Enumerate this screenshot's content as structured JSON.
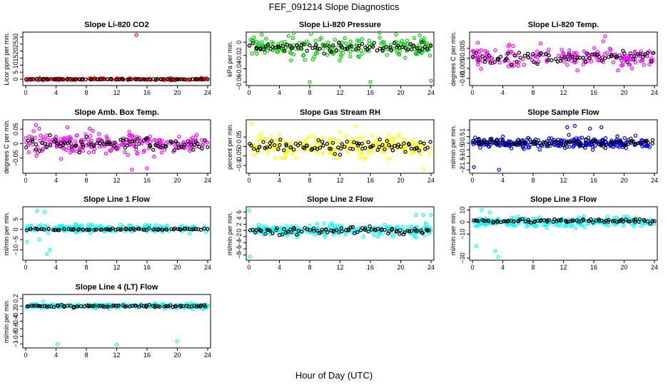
{
  "figure": {
    "title": "FEF_091214  Slope Diagnostics",
    "xlabel": "Hour of Day (UTC)"
  },
  "chart_data": [
    {
      "type": "scatter",
      "title": "Slope Li-820 CO2",
      "ylabel": "Licor ppm per min.",
      "color": "#ff0000",
      "overlay_color": "#000000",
      "xlim": [
        0,
        24
      ],
      "xticks": [
        0,
        4,
        8,
        12,
        16,
        20,
        24
      ],
      "ylim": [
        -3,
        32
      ],
      "yticks": [
        0,
        5,
        10,
        15,
        20,
        25,
        30
      ],
      "center": 0,
      "spread": 0.6,
      "overlay_center": 0,
      "overlay_spread": 0.3,
      "n": 160,
      "outliers": [
        [
          14.6,
          31.5
        ]
      ]
    },
    {
      "type": "scatter",
      "title": "Slope Li-820 Pressure",
      "ylabel": "kPa per min.",
      "color": "#00cc00",
      "overlay_color": "#000000",
      "xlim": [
        0,
        24
      ],
      "xticks": [
        0,
        4,
        8,
        12,
        16,
        20,
        24
      ],
      "ylim": [
        -0.062,
        0.012
      ],
      "yticks": [
        -0.06,
        -0.04,
        -0.02,
        0.0
      ],
      "center": -0.007,
      "spread": 0.014,
      "overlay_center": -0.008,
      "overlay_spread": 0.006,
      "n": 200,
      "outliers": [
        [
          8,
          -0.06
        ],
        [
          16,
          -0.06
        ],
        [
          24,
          -0.058
        ]
      ]
    },
    {
      "type": "scatter",
      "title": "Slope Li-820 Temp.",
      "ylabel": "degrees C per min.",
      "color": "#ff00ff",
      "overlay_color": "#000000",
      "xlim": [
        0,
        24
      ],
      "xticks": [
        0,
        4,
        8,
        12,
        16,
        20,
        24
      ],
      "ylim": [
        -0.0125,
        0.012
      ],
      "yticks": [
        -0.01,
        -0.005,
        0.0,
        0.005
      ],
      "center": 0.001,
      "spread": 0.005,
      "overlay_center": 0.0005,
      "overlay_spread": 0.003,
      "n": 180,
      "outliers": [
        [
          17.5,
          0.011
        ]
      ]
    },
    {
      "type": "scatter",
      "title": "Slope Amb. Box Temp.",
      "ylabel": "degrees C per min.",
      "color": "#ff00ff",
      "overlay_color": "#000000",
      "xlim": [
        0,
        24
      ],
      "xticks": [
        0,
        4,
        8,
        12,
        16,
        20,
        24
      ],
      "ylim": [
        -0.095,
        0.075
      ],
      "yticks": [
        -0.05,
        0.0,
        0.05
      ],
      "center": 0,
      "spread": 0.035,
      "overlay_center": 0,
      "overlay_spread": 0.02,
      "n": 220,
      "outliers": [
        [
          14,
          -0.09
        ],
        [
          16,
          -0.085
        ]
      ]
    },
    {
      "type": "scatter",
      "title": "Slope Gas Stream RH",
      "ylabel": "percent per min.",
      "color": "#ffff00",
      "overlay_color": "#000000",
      "xlim": [
        0,
        24
      ],
      "xticks": [
        0,
        4,
        8,
        12,
        16,
        20,
        24
      ],
      "ylim": [
        -0.13,
        0.13
      ],
      "yticks": [
        -0.1,
        -0.05,
        0.0,
        0.05
      ],
      "center": 0,
      "spread": 0.05,
      "overlay_center": 0,
      "overlay_spread": 0.03,
      "n": 220,
      "outliers": [
        [
          0.3,
          0.12
        ],
        [
          23,
          -0.12
        ]
      ]
    },
    {
      "type": "scatter",
      "title": "Slope Sample Flow",
      "ylabel": "ml/min per min.",
      "color": "#0000ff",
      "overlay_color": "#000000",
      "xlim": [
        0,
        24
      ],
      "xticks": [
        0,
        4,
        8,
        12,
        16,
        20,
        24
      ],
      "ylim": [
        -2.1,
        1.6
      ],
      "yticks": [
        -2.0,
        -1.5,
        -1.0,
        -0.5,
        0.0,
        0.5,
        1.0
      ],
      "center": 0,
      "spread": 0.35,
      "overlay_center": 0.05,
      "overlay_spread": 0.25,
      "n": 240,
      "outliers": [
        [
          0.2,
          -1.8
        ],
        [
          3.5,
          -2.0
        ],
        [
          12.5,
          1.2
        ],
        [
          13.5,
          1.3
        ],
        [
          15.5,
          1.1
        ],
        [
          17,
          1.2
        ]
      ]
    },
    {
      "type": "scatter",
      "title": "Slope Line 1 Flow",
      "ylabel": "ml/min per min.",
      "color": "#00ffff",
      "overlay_color": "#000000",
      "xlim": [
        0,
        24
      ],
      "xticks": [
        0,
        4,
        8,
        12,
        16,
        20,
        24
      ],
      "ylim": [
        -14,
        10
      ],
      "yticks": [
        -10,
        -5,
        0,
        5
      ],
      "center": 0.5,
      "spread": 1.6,
      "overlay_center": 0,
      "overlay_spread": 0.4,
      "n": 200,
      "outliers": [
        [
          0.2,
          -6
        ],
        [
          1.5,
          9
        ],
        [
          2.5,
          8.5
        ],
        [
          1.8,
          -5
        ],
        [
          2.8,
          -12
        ],
        [
          3.2,
          -10
        ]
      ]
    },
    {
      "type": "scatter",
      "title": "Slope Line 2 Flow",
      "ylabel": "ml/min per min.",
      "color": "#00ffff",
      "overlay_color": "#000000",
      "xlim": [
        0,
        24
      ],
      "xticks": [
        0,
        4,
        8,
        12,
        16,
        20,
        24
      ],
      "ylim": [
        -9,
        7
      ],
      "yticks": [
        -8,
        -6,
        -4,
        -2,
        0,
        2,
        4,
        6
      ],
      "center": 0,
      "spread": 1.6,
      "overlay_center": 0,
      "overlay_spread": 1.1,
      "n": 220,
      "outliers": [
        [
          0,
          6.5
        ],
        [
          0.1,
          -8.5
        ],
        [
          22,
          5
        ],
        [
          23,
          5
        ],
        [
          24,
          5
        ]
      ]
    },
    {
      "type": "scatter",
      "title": "Slope Line 3 Flow",
      "ylabel": "ml/min per min.",
      "color": "#00ffff",
      "overlay_color": "#000000",
      "xlim": [
        0,
        24
      ],
      "xticks": [
        0,
        4,
        8,
        12,
        16,
        20,
        24
      ],
      "ylim": [
        -30,
        11
      ],
      "yticks": [
        -30,
        -10,
        0,
        10
      ],
      "center": 0,
      "spread": 3.5,
      "overlay_center": 1,
      "overlay_spread": 1.5,
      "n": 220,
      "outliers": [
        [
          0.5,
          -20
        ],
        [
          1.2,
          10
        ],
        [
          2.3,
          8
        ],
        [
          3.4,
          -29
        ],
        [
          3,
          -24
        ]
      ]
    },
    {
      "type": "scatter",
      "title": "Slope Line 4 (LT) Flow",
      "ylabel": "ml/min per min.",
      "color": "#00ffff",
      "overlay_color": "#000000",
      "xlim": [
        0,
        24
      ],
      "xticks": [
        0,
        4,
        8,
        12,
        16,
        20,
        24
      ],
      "ylim": [
        -1.05,
        0.25
      ],
      "yticks": [
        -1.0,
        -0.8,
        -0.6,
        -0.4,
        -0.2,
        0.0,
        0.2
      ],
      "center": 0,
      "spread": 0.05,
      "overlay_center": 0,
      "overlay_spread": 0.03,
      "n": 200,
      "outliers": [
        [
          4.2,
          -1.0
        ],
        [
          12,
          -1.02
        ],
        [
          20,
          -0.93
        ],
        [
          2.3,
          0.12
        ]
      ]
    }
  ]
}
